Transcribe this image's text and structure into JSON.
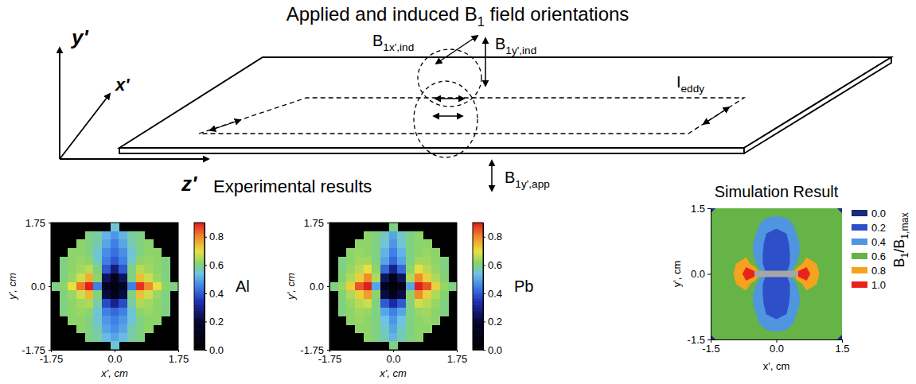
{
  "title": [
    {
      "text": "Applied and induced B"
    },
    {
      "sub": "1"
    },
    {
      "text": " field orientations"
    }
  ],
  "diagram": {
    "axes": [
      "y'",
      "x'",
      "z'"
    ],
    "field_labels": [
      [
        {
          "text": "B"
        },
        {
          "sub": "1x',ind"
        }
      ],
      [
        {
          "text": "B"
        },
        {
          "sub": "1y',ind"
        }
      ],
      [
        {
          "text": "I"
        },
        {
          "sub": "eddy"
        }
      ],
      [
        {
          "text": "B"
        },
        {
          "sub": "1y',app"
        }
      ]
    ]
  },
  "headers": {
    "experimental": "Experimental results"
  },
  "chart_data": [
    {
      "type": "heatmap",
      "label": "Al",
      "xlabel": "x', cm",
      "ylabel": "y', cm",
      "xlim": [
        -1.75,
        1.75
      ],
      "ylim": [
        -1.75,
        1.75
      ],
      "xticks": [
        -1.75,
        {
          "value": 0,
          "label": "0.0"
        },
        1.75
      ],
      "yticks": [
        -1.75,
        {
          "value": 0,
          "label": "0.0"
        },
        1.75
      ],
      "cells": [
        [
          null,
          null,
          null,
          null,
          null,
          null,
          null,
          0.55,
          null,
          null,
          null,
          null,
          null,
          null,
          null
        ],
        [
          null,
          null,
          null,
          null,
          0.6,
          0.58,
          0.52,
          0.48,
          0.52,
          0.58,
          0.6,
          null,
          null,
          null,
          null
        ],
        [
          null,
          null,
          null,
          0.62,
          0.6,
          0.57,
          0.5,
          0.45,
          0.5,
          0.57,
          0.6,
          0.62,
          null,
          null,
          null
        ],
        [
          null,
          null,
          0.62,
          0.62,
          0.6,
          0.55,
          0.47,
          0.43,
          0.47,
          0.55,
          0.6,
          0.62,
          0.62,
          null,
          null
        ],
        [
          null,
          0.6,
          0.62,
          0.63,
          0.62,
          0.56,
          0.45,
          0.4,
          0.45,
          0.56,
          0.62,
          0.63,
          0.62,
          0.6,
          null
        ],
        [
          null,
          0.6,
          0.62,
          0.64,
          0.66,
          0.6,
          0.4,
          0.28,
          0.4,
          0.6,
          0.66,
          0.64,
          0.62,
          0.6,
          null
        ],
        [
          null,
          0.6,
          0.63,
          0.68,
          0.76,
          0.62,
          0.25,
          0.12,
          0.25,
          0.6,
          0.74,
          0.68,
          0.63,
          0.6,
          null
        ],
        [
          0.6,
          0.62,
          0.7,
          0.82,
          0.9,
          0.45,
          0.15,
          0.08,
          0.15,
          0.45,
          0.88,
          0.8,
          0.7,
          0.62,
          0.6
        ],
        [
          null,
          0.6,
          0.63,
          0.68,
          0.75,
          0.6,
          0.22,
          0.1,
          0.22,
          0.6,
          0.74,
          0.68,
          0.63,
          0.6,
          null
        ],
        [
          null,
          0.6,
          0.62,
          0.64,
          0.65,
          0.58,
          0.38,
          0.3,
          0.38,
          0.58,
          0.65,
          0.64,
          0.62,
          0.6,
          null
        ],
        [
          null,
          0.6,
          0.62,
          0.63,
          0.62,
          0.55,
          0.45,
          0.42,
          0.45,
          0.55,
          0.62,
          0.63,
          0.62,
          0.6,
          null
        ],
        [
          null,
          null,
          0.62,
          0.62,
          0.6,
          0.55,
          0.48,
          0.45,
          0.48,
          0.55,
          0.6,
          0.62,
          0.62,
          null,
          null
        ],
        [
          null,
          null,
          null,
          0.62,
          0.6,
          0.57,
          0.5,
          0.47,
          0.5,
          0.57,
          0.6,
          0.62,
          null,
          null,
          null
        ],
        [
          null,
          null,
          null,
          null,
          0.6,
          0.58,
          0.53,
          0.5,
          0.53,
          0.58,
          0.6,
          null,
          null,
          null,
          null
        ],
        [
          null,
          null,
          null,
          null,
          null,
          null,
          null,
          0.55,
          null,
          null,
          null,
          null,
          null,
          null,
          null
        ]
      ],
      "colorbar": {
        "range": [
          0,
          0.9
        ],
        "ticks": [
          {
            "value": 0,
            "label": "0.0"
          },
          0.2,
          0.4,
          0.6,
          0.8
        ]
      }
    },
    {
      "type": "heatmap",
      "label": "Pb",
      "xlabel": "x', cm",
      "ylabel": "y', cm",
      "xlim": [
        -1.75,
        1.75
      ],
      "ylim": [
        -1.75,
        1.75
      ],
      "xticks": [
        -1.75,
        {
          "value": 0,
          "label": "0.0"
        },
        1.75
      ],
      "yticks": [
        -1.75,
        {
          "value": 0,
          "label": "0.0"
        },
        1.75
      ],
      "cells": [
        [
          null,
          null,
          null,
          null,
          null,
          null,
          null,
          0.6,
          null,
          null,
          null,
          null,
          null,
          null,
          null
        ],
        [
          null,
          null,
          null,
          null,
          0.62,
          0.6,
          0.56,
          0.5,
          0.56,
          0.6,
          0.62,
          null,
          null,
          null,
          null
        ],
        [
          null,
          null,
          null,
          0.62,
          0.62,
          0.6,
          0.55,
          0.48,
          0.55,
          0.6,
          0.62,
          0.62,
          null,
          null,
          null
        ],
        [
          null,
          null,
          0.62,
          0.63,
          0.62,
          0.6,
          0.52,
          0.45,
          0.52,
          0.6,
          0.62,
          0.63,
          0.62,
          null,
          null
        ],
        [
          null,
          0.6,
          0.62,
          0.64,
          0.64,
          0.6,
          0.5,
          0.42,
          0.5,
          0.6,
          0.64,
          0.64,
          0.62,
          0.6,
          null
        ],
        [
          null,
          0.6,
          0.63,
          0.66,
          0.7,
          0.62,
          0.42,
          0.3,
          0.42,
          0.62,
          0.7,
          0.66,
          0.63,
          0.6,
          null
        ],
        [
          null,
          0.61,
          0.65,
          0.72,
          0.8,
          0.65,
          0.25,
          0.1,
          0.25,
          0.65,
          0.8,
          0.72,
          0.65,
          0.61,
          null
        ],
        [
          0.6,
          0.63,
          0.72,
          0.85,
          0.9,
          0.5,
          0.12,
          0.05,
          0.12,
          0.5,
          0.9,
          0.85,
          0.72,
          0.63,
          0.6
        ],
        [
          null,
          0.61,
          0.65,
          0.72,
          0.78,
          0.62,
          0.22,
          0.1,
          0.22,
          0.62,
          0.8,
          0.72,
          0.65,
          0.61,
          null
        ],
        [
          null,
          0.6,
          0.63,
          0.66,
          0.68,
          0.6,
          0.4,
          0.32,
          0.4,
          0.6,
          0.68,
          0.66,
          0.63,
          0.6,
          null
        ],
        [
          null,
          0.6,
          0.62,
          0.64,
          0.63,
          0.6,
          0.5,
          0.45,
          0.5,
          0.6,
          0.63,
          0.64,
          0.62,
          0.6,
          null
        ],
        [
          null,
          null,
          0.62,
          0.63,
          0.62,
          0.6,
          0.54,
          0.48,
          0.54,
          0.6,
          0.62,
          0.63,
          0.62,
          null,
          null
        ],
        [
          null,
          null,
          null,
          0.62,
          0.62,
          0.6,
          0.56,
          0.5,
          0.56,
          0.6,
          0.62,
          0.62,
          null,
          null,
          null
        ],
        [
          null,
          null,
          null,
          null,
          0.62,
          0.6,
          0.57,
          0.52,
          0.57,
          0.6,
          0.62,
          null,
          null,
          null,
          null
        ],
        [
          null,
          null,
          null,
          null,
          null,
          null,
          null,
          0.6,
          null,
          null,
          null,
          null,
          null,
          null,
          null
        ]
      ],
      "colorbar": {
        "range": [
          0,
          0.9
        ],
        "ticks": [
          {
            "value": 0,
            "label": "0.0"
          },
          0.2,
          0.4,
          0.6,
          0.8
        ]
      }
    },
    {
      "type": "contour",
      "title": "Simulation Result",
      "xlabel": "x', cm",
      "ylabel": "y', cm",
      "xlim": [
        -1.5,
        1.5
      ],
      "ylim": [
        -1.5,
        1.5
      ],
      "xticks": [
        -1.5,
        {
          "value": 0,
          "label": "0.0"
        },
        1.5
      ],
      "yticks": [
        -1.5,
        {
          "value": 0,
          "label": "0.0"
        },
        1.5
      ],
      "cells": [
        [
          0.62,
          0.62,
          0.62,
          0.62,
          0.61,
          0.57,
          0.55,
          0.57,
          0.61,
          0.62,
          0.62,
          0.62,
          0.62
        ],
        [
          0.61,
          0.61,
          0.61,
          0.61,
          0.55,
          0.42,
          0.35,
          0.42,
          0.55,
          0.61,
          0.61,
          0.61,
          0.61
        ],
        [
          0.61,
          0.61,
          0.61,
          0.61,
          0.5,
          0.3,
          0.25,
          0.3,
          0.5,
          0.61,
          0.61,
          0.61,
          0.61
        ],
        [
          0.61,
          0.61,
          0.61,
          0.61,
          0.45,
          0.25,
          0.2,
          0.25,
          0.45,
          0.61,
          0.61,
          0.61,
          0.61
        ],
        [
          0.61,
          0.61,
          0.62,
          0.62,
          0.45,
          0.22,
          0.15,
          0.22,
          0.45,
          0.62,
          0.62,
          0.61,
          0.61
        ],
        [
          0.62,
          0.63,
          0.7,
          0.85,
          0.5,
          0.2,
          0.1,
          0.2,
          0.5,
          0.85,
          0.7,
          0.63,
          0.62
        ],
        [
          0.62,
          0.64,
          0.72,
          1.0,
          1.0,
          0.3,
          0.3,
          0.3,
          1.0,
          1.0,
          0.72,
          0.64,
          0.62
        ],
        [
          0.62,
          0.63,
          0.7,
          0.85,
          0.5,
          0.2,
          0.1,
          0.2,
          0.5,
          0.85,
          0.7,
          0.63,
          0.62
        ],
        [
          0.61,
          0.61,
          0.62,
          0.62,
          0.45,
          0.22,
          0.15,
          0.22,
          0.45,
          0.62,
          0.62,
          0.61,
          0.61
        ],
        [
          0.61,
          0.61,
          0.61,
          0.61,
          0.45,
          0.25,
          0.2,
          0.25,
          0.45,
          0.61,
          0.61,
          0.61,
          0.61
        ],
        [
          0.61,
          0.61,
          0.61,
          0.61,
          0.5,
          0.3,
          0.25,
          0.3,
          0.5,
          0.61,
          0.61,
          0.61,
          0.61
        ],
        [
          0.61,
          0.61,
          0.61,
          0.61,
          0.55,
          0.42,
          0.35,
          0.42,
          0.55,
          0.61,
          0.61,
          0.61,
          0.61
        ],
        [
          0.62,
          0.62,
          0.62,
          0.62,
          0.61,
          0.57,
          0.55,
          0.57,
          0.61,
          0.62,
          0.62,
          0.62,
          0.62
        ]
      ],
      "levels": [
        {
          "value": 0,
          "label": "0.0"
        },
        0.2,
        0.4,
        0.6,
        0.8,
        {
          "value": 1,
          "label": "1.0"
        }
      ],
      "colors": [
        "#1b2a7a",
        "#2f4fc8",
        "#4f95e0",
        "#66b347",
        "#f5a21e",
        "#e8231c"
      ],
      "colorbar_title": [
        {
          "text": "B"
        },
        {
          "sub": "1"
        },
        {
          "text": "/B"
        },
        {
          "sub": "1,max"
        }
      ]
    }
  ]
}
